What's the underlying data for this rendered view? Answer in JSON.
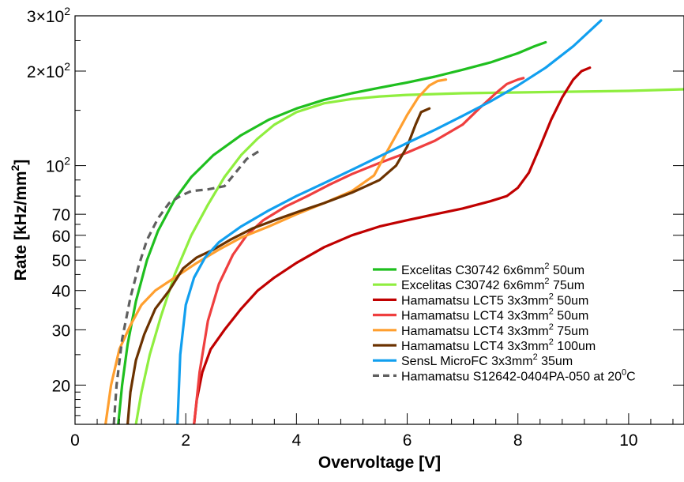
{
  "chart_data": {
    "type": "line",
    "xlabel": "Overvoltage [V]",
    "ylabel": "Rate [kHz/mm",
    "ylabel_sup": "2",
    "ylabel_end": "]",
    "xlim": [
      0,
      11
    ],
    "ylim": [
      15,
      300
    ],
    "yscale": "log",
    "grid": false,
    "legend_position": "lower-right",
    "x_ticks": [
      {
        "value": 0,
        "label": "0"
      },
      {
        "value": 2,
        "label": "2"
      },
      {
        "value": 4,
        "label": "4"
      },
      {
        "value": 6,
        "label": "6"
      },
      {
        "value": 8,
        "label": "8"
      },
      {
        "value": 10,
        "label": "10"
      }
    ],
    "y_ticks": [
      {
        "value": 300,
        "label": "3×10",
        "sup": "2"
      },
      {
        "value": 200,
        "label": "2×10",
        "sup": "2"
      },
      {
        "value": 100,
        "label": "10",
        "sup": "2"
      },
      {
        "value": 70,
        "label": "70",
        "sup": ""
      },
      {
        "value": 60,
        "label": "60",
        "sup": ""
      },
      {
        "value": 50,
        "label": "50",
        "sup": ""
      },
      {
        "value": 40,
        "label": "40",
        "sup": ""
      },
      {
        "value": 30,
        "label": "30",
        "sup": ""
      },
      {
        "value": 20,
        "label": "20",
        "sup": ""
      }
    ],
    "series": [
      {
        "name": "Excelitas C30742 6x6mm",
        "sup": "2",
        "suffix": " 50um",
        "color": "#1fbf1f",
        "dash": false,
        "x": [
          0.78,
          0.85,
          0.95,
          1.1,
          1.3,
          1.5,
          1.8,
          2.1,
          2.5,
          3.0,
          3.5,
          4.0,
          4.5,
          5.0,
          5.5,
          6.0,
          6.5,
          7.0,
          7.5,
          8.0,
          8.3,
          8.5
        ],
        "y": [
          15,
          20,
          27,
          37,
          50,
          62,
          78,
          92,
          108,
          125,
          140,
          152,
          162,
          170,
          177,
          184,
          192,
          202,
          213,
          228,
          240,
          247
        ]
      },
      {
        "name": "Excelitas C30742 6x6mm",
        "sup": "2",
        "suffix": " 75um",
        "color": "#8fee3f",
        "dash": false,
        "x": [
          1.1,
          1.2,
          1.35,
          1.55,
          1.8,
          2.1,
          2.4,
          2.7,
          3.0,
          3.3,
          3.6,
          4.0,
          4.5,
          5.0,
          5.5,
          6.0,
          7.0,
          8.0,
          9.0,
          10.0,
          11.0
        ],
        "y": [
          15,
          19,
          25,
          33,
          45,
          60,
          75,
          92,
          108,
          122,
          135,
          148,
          158,
          163,
          166,
          168,
          170,
          171,
          172,
          173,
          175
        ]
      },
      {
        "name": "Hamamatsu LCT5 3x3mm",
        "sup": "2",
        "suffix": " 50um",
        "color": "#c00000",
        "dash": false,
        "x": [
          2.15,
          2.2,
          2.3,
          2.45,
          2.7,
          3.0,
          3.3,
          3.6,
          4.0,
          4.5,
          5.0,
          5.5,
          6.0,
          6.5,
          7.0,
          7.5,
          7.8,
          8.0,
          8.2,
          8.4,
          8.6,
          8.8,
          9.0,
          9.15,
          9.3
        ],
        "y": [
          15,
          18,
          22,
          26,
          30,
          35,
          40,
          44,
          49,
          55,
          60,
          64,
          67,
          70,
          73,
          77,
          80,
          85,
          95,
          115,
          140,
          165,
          188,
          200,
          205
        ]
      },
      {
        "name": "Hamamatsu LCT4 3x3mm",
        "sup": "2",
        "suffix": " 50um",
        "color": "#ef3f3f",
        "dash": false,
        "x": [
          2.15,
          2.25,
          2.4,
          2.6,
          2.85,
          3.1,
          3.4,
          3.8,
          4.2,
          4.6,
          5.0,
          5.5,
          6.0,
          6.5,
          7.0,
          7.3,
          7.6,
          7.8,
          8.0,
          8.1
        ],
        "y": [
          15,
          22,
          32,
          42,
          52,
          60,
          67,
          74,
          80,
          87,
          94,
          102,
          110,
          120,
          135,
          152,
          170,
          182,
          188,
          190
        ]
      },
      {
        "name": "Hamamatsu LCT4 3x3mm",
        "sup": "2",
        "suffix": " 75um",
        "color": "#ff9f2f",
        "dash": false,
        "x": [
          0.55,
          0.65,
          0.8,
          1.0,
          1.2,
          1.45,
          1.8,
          2.2,
          2.6,
          3.0,
          3.5,
          4.0,
          4.5,
          5.0,
          5.4,
          5.6,
          5.8,
          6.0,
          6.2,
          6.4,
          6.55,
          6.7
        ],
        "y": [
          15,
          20,
          26,
          31,
          36,
          40,
          44,
          49,
          54,
          59,
          64,
          70,
          76,
          83,
          93,
          108,
          125,
          145,
          165,
          180,
          186,
          188
        ]
      },
      {
        "name": "Hamamatsu LCT4 3x3mm",
        "sup": "2",
        "suffix": " 100um",
        "color": "#6b3200",
        "dash": false,
        "x": [
          0.95,
          1.0,
          1.1,
          1.25,
          1.45,
          1.7,
          1.95,
          2.2,
          2.5,
          2.8,
          3.2,
          3.6,
          4.0,
          4.5,
          5.0,
          5.5,
          5.8,
          6.0,
          6.15,
          6.25,
          6.4
        ],
        "y": [
          15,
          19,
          24,
          29,
          35,
          40,
          47,
          51,
          54,
          58,
          63,
          67,
          71,
          76,
          82,
          90,
          100,
          115,
          135,
          148,
          152
        ]
      },
      {
        "name": "SensL MicroFC 3x3mm",
        "sup": "2",
        "suffix": " 35um",
        "color": "#119fef",
        "dash": false,
        "x": [
          1.85,
          1.9,
          2.0,
          2.15,
          2.35,
          2.6,
          3.0,
          3.5,
          4.0,
          4.5,
          5.0,
          5.5,
          6.0,
          6.5,
          7.0,
          7.5,
          8.0,
          8.5,
          9.0,
          9.5
        ],
        "y": [
          15,
          25,
          36,
          44,
          51,
          57,
          64,
          72,
          80,
          88,
          97,
          107,
          118,
          130,
          144,
          160,
          180,
          205,
          240,
          290
        ]
      },
      {
        "name": "Hamamatsu S12642-0404PA-050 at 20",
        "sup": "0",
        "suffix": "C",
        "color": "#5f5f5f",
        "dash": true,
        "x": [
          0.7,
          0.75,
          0.85,
          1.0,
          1.15,
          1.3,
          1.5,
          1.7,
          1.9,
          2.1,
          2.4,
          2.7,
          2.9,
          3.1,
          3.35
        ],
        "y": [
          15,
          20,
          28,
          38,
          48,
          58,
          68,
          76,
          80,
          83,
          84,
          86,
          95,
          105,
          112
        ]
      }
    ]
  }
}
